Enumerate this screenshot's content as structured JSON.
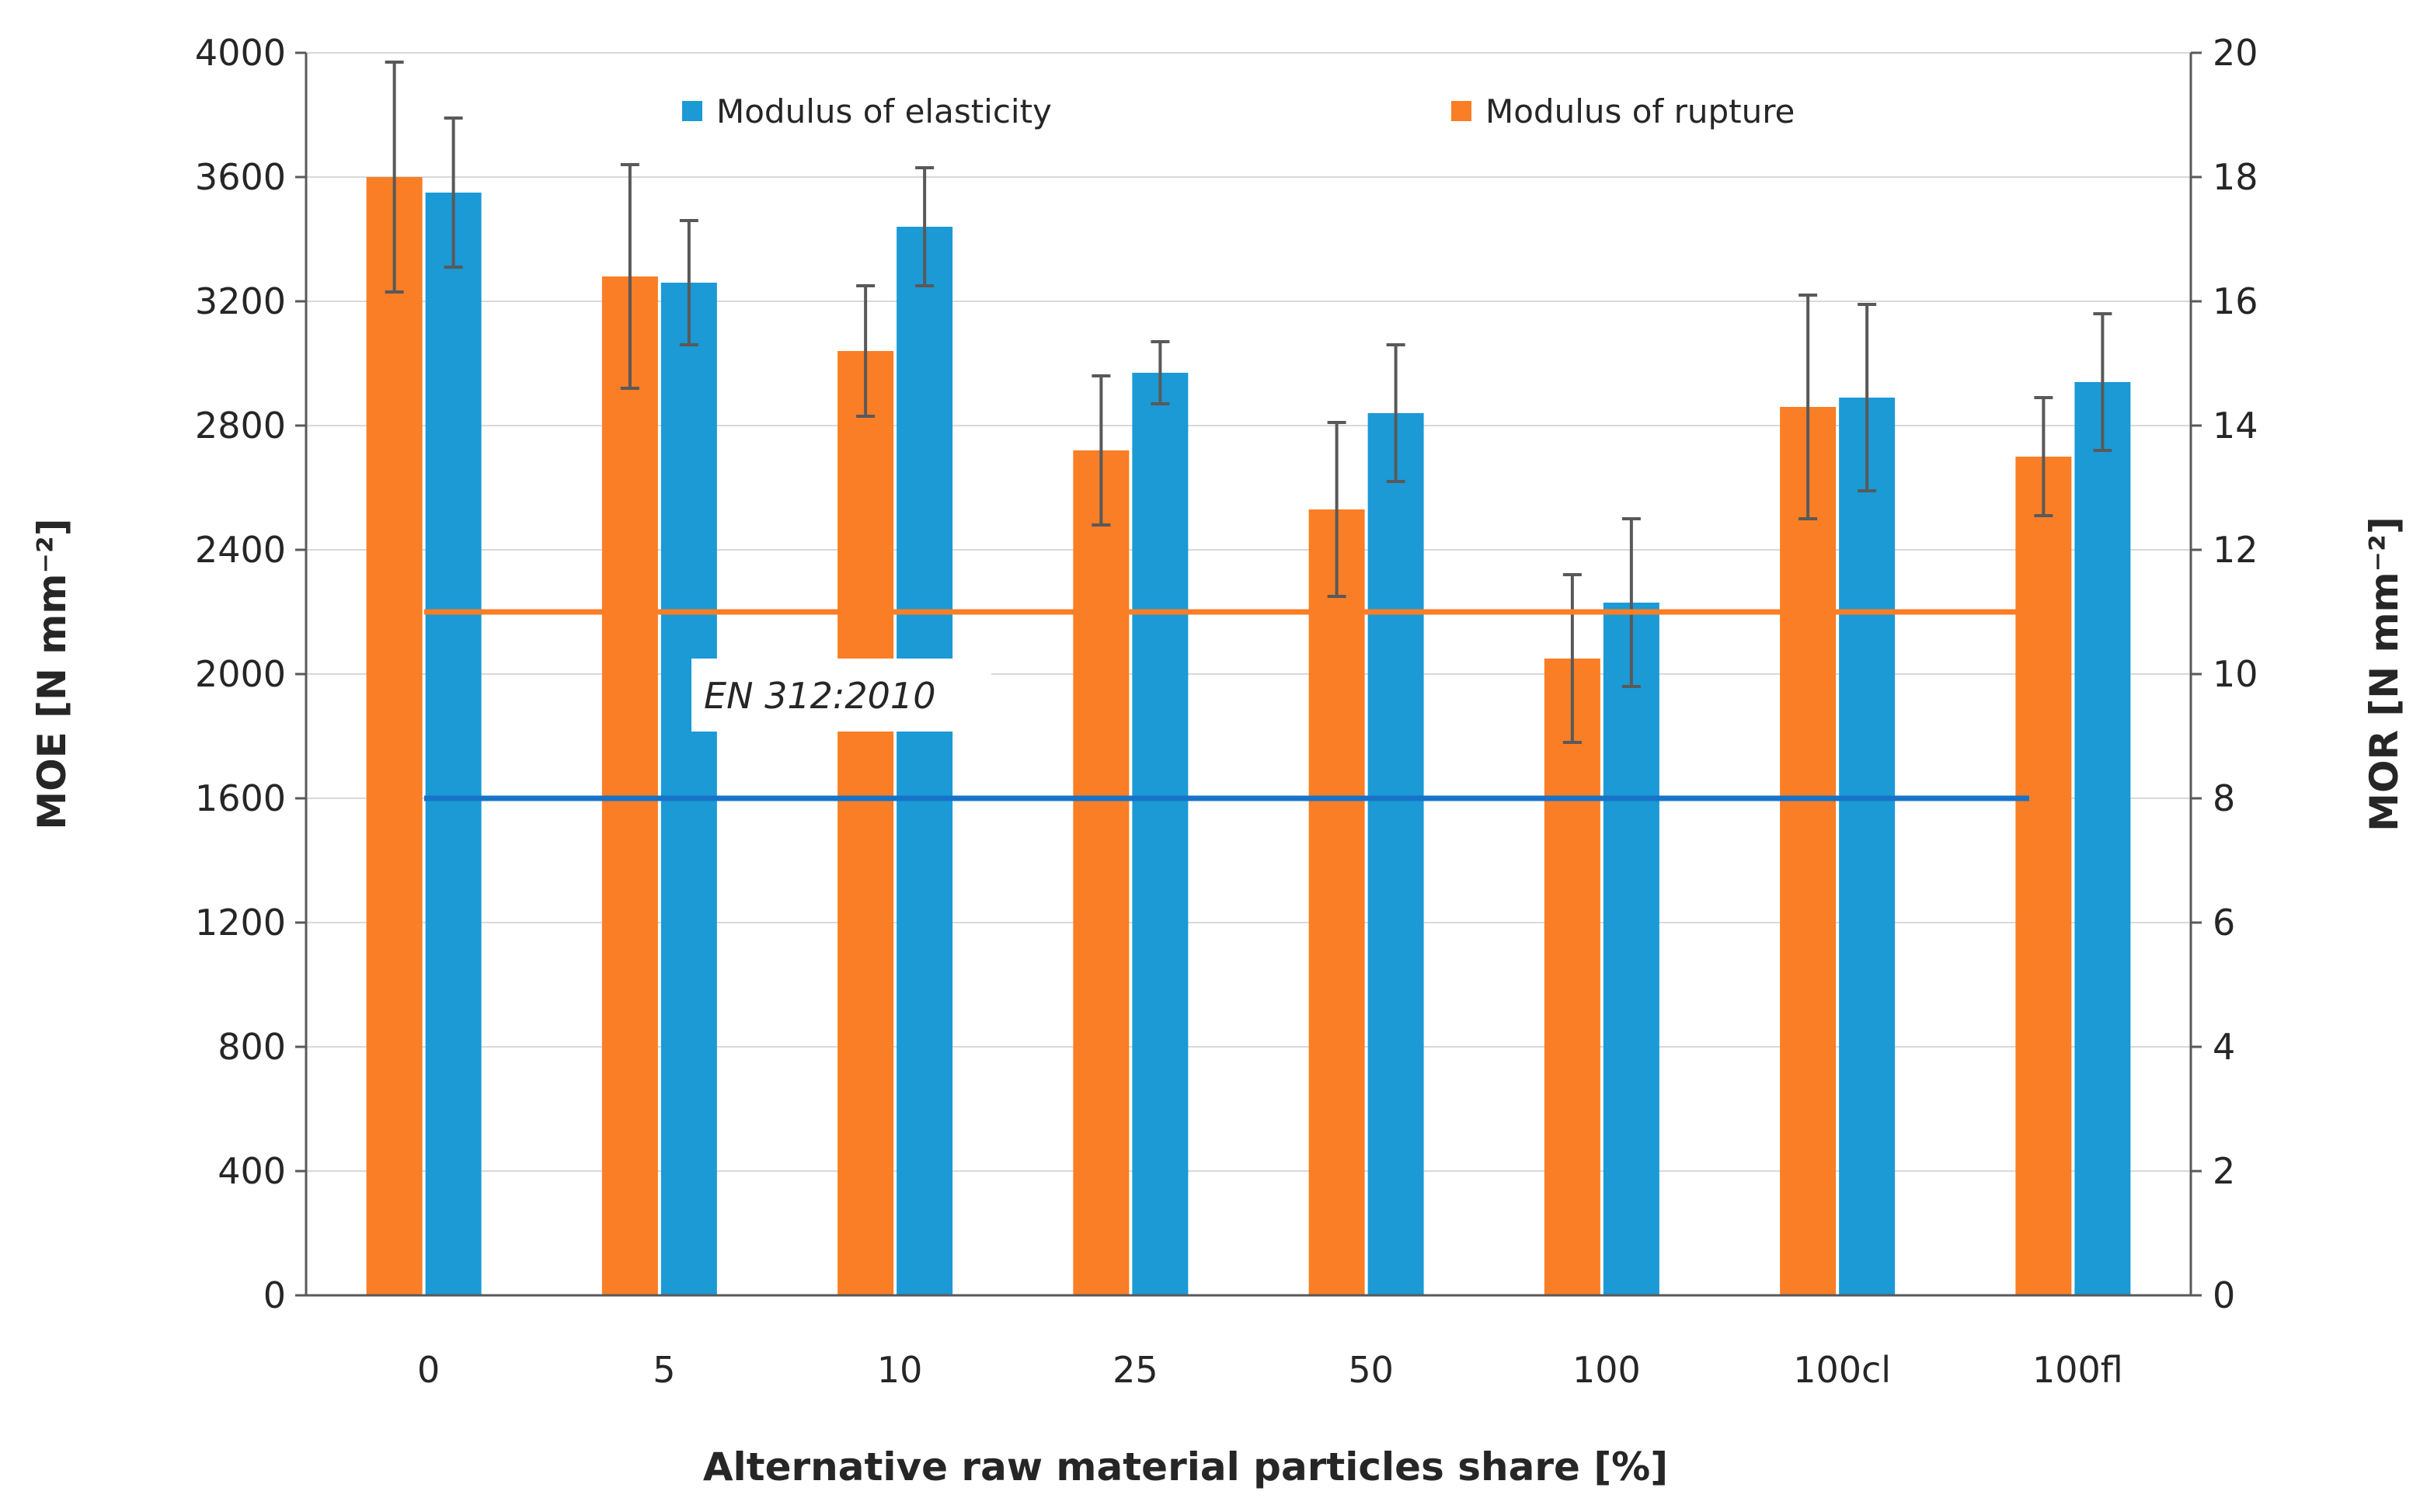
{
  "chart_data": {
    "type": "bar",
    "categories": [
      "0",
      "5",
      "10",
      "25",
      "50",
      "100",
      "100cl",
      "100fl"
    ],
    "xlabel": "Alternative raw material particles share [%]",
    "ylabel_left": "MOE [N mm⁻²]",
    "ylabel_right": "MOR [N mm⁻²]",
    "ylim_left": [
      0,
      4000
    ],
    "ylim_right": [
      0,
      20
    ],
    "yticks_left": [
      "0",
      "400",
      "800",
      "1200",
      "1600",
      "2000",
      "2400",
      "2800",
      "3200",
      "3600",
      "4000"
    ],
    "yticks_right": [
      "0",
      "2",
      "4",
      "6",
      "8",
      "10",
      "12",
      "14",
      "16",
      "18",
      "20"
    ],
    "grid": true,
    "legend_position": "top",
    "series": [
      {
        "name": "Modulus of rupture",
        "axis": "right",
        "color": "#F97E25",
        "values": [
          18.0,
          16.4,
          15.2,
          13.6,
          12.65,
          10.25,
          14.3,
          13.5
        ],
        "errors": [
          1.85,
          1.8,
          1.05,
          1.2,
          1.4,
          1.35,
          1.8,
          0.95
        ]
      },
      {
        "name": "Modulus of elasticity",
        "axis": "left",
        "color": "#1B9AD6",
        "values": [
          3550,
          3260,
          3440,
          2970,
          2840,
          2230,
          2890,
          2940
        ],
        "errors": [
          240,
          200,
          190,
          100,
          220,
          270,
          300,
          220
        ]
      }
    ],
    "reference_lines": [
      {
        "name": "EN 312:2010 MOR",
        "axis": "right",
        "value": 11,
        "color": "#F97E25"
      },
      {
        "name": "EN 312:2010 MOE",
        "axis": "left",
        "value": 1600,
        "color": "#1773C8"
      }
    ],
    "annotation": "EN 312:2010"
  }
}
